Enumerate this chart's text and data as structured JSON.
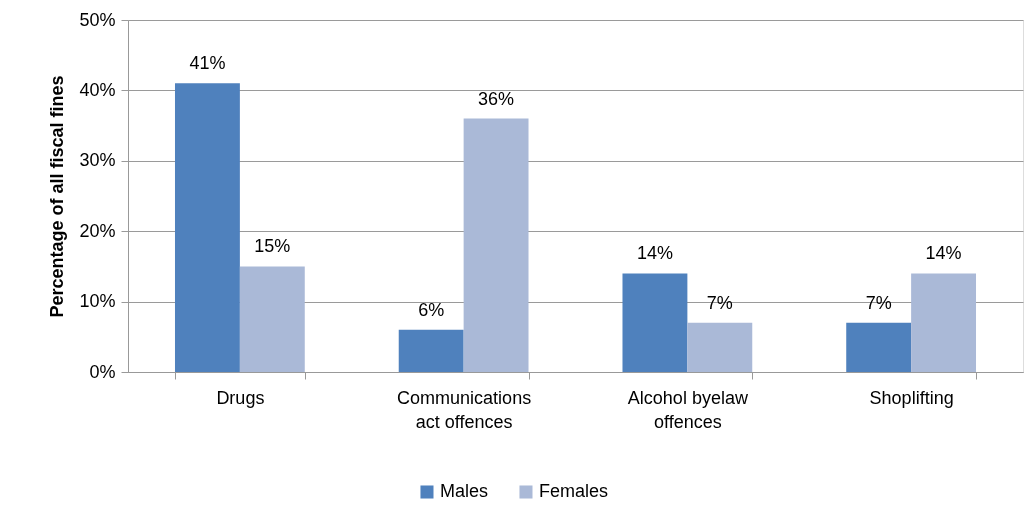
{
  "chart_data": {
    "type": "bar",
    "ylabel": "Percentage of all fiscal fines",
    "categories": [
      "Drugs",
      "Communications act offences",
      "Alcohol byelaw offences",
      "Shoplifting"
    ],
    "series": [
      {
        "name": "Males",
        "color": "#4f81bd",
        "values": [
          41,
          6,
          14,
          7
        ],
        "value_labels": [
          "41%",
          "6%",
          "14%",
          "7%"
        ]
      },
      {
        "name": "Females",
        "color": "#aab9d7",
        "values": [
          15,
          36,
          7,
          14
        ],
        "value_labels": [
          "15%",
          "36%",
          "7%",
          "14%"
        ]
      }
    ],
    "ylim": [
      0,
      50
    ],
    "yticks": [
      {
        "value": 0,
        "label": "0%"
      },
      {
        "value": 10,
        "label": "10%"
      },
      {
        "value": 20,
        "label": "20%"
      },
      {
        "value": 30,
        "label": "30%"
      },
      {
        "value": 40,
        "label": "40%"
      },
      {
        "value": 50,
        "label": "50%"
      }
    ],
    "grid": "y",
    "legend": "bottom"
  }
}
